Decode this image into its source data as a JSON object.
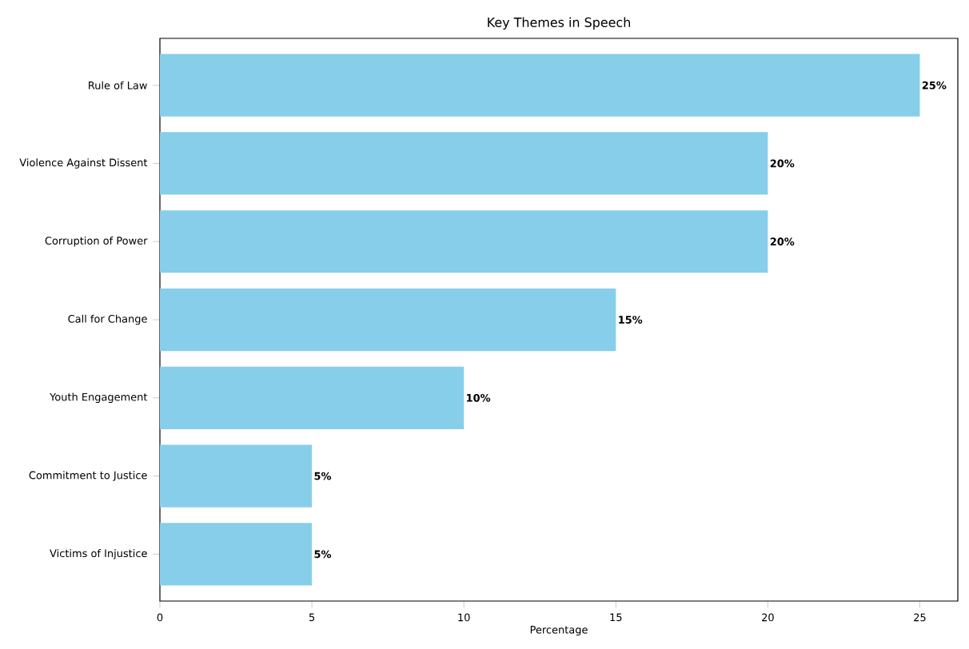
{
  "chart_data": {
    "type": "bar",
    "orientation": "horizontal",
    "title": "Key Themes in Speech",
    "xlabel": "Percentage",
    "categories": [
      "Rule of Law",
      "Violence Against Dissent",
      "Corruption of Power",
      "Call for Change",
      "Youth Engagement",
      "Commitment to Justice",
      "Victims of Injustice"
    ],
    "values": [
      25,
      20,
      20,
      15,
      10,
      5,
      5
    ],
    "value_labels": [
      "25%",
      "20%",
      "20%",
      "15%",
      "10%",
      "5%",
      "5%"
    ],
    "color": "#87ceeb",
    "xlim": [
      0,
      26.25
    ],
    "xticks": [
      0,
      5,
      10,
      15,
      20,
      25
    ]
  }
}
